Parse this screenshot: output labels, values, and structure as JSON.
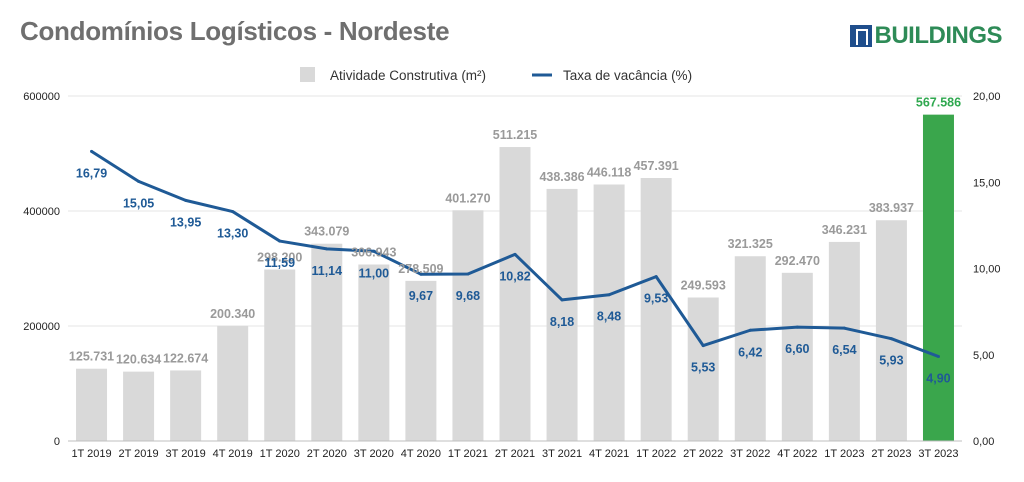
{
  "title": "Condomínios Logísticos - Nordeste",
  "logo": {
    "text": "BUILDINGS",
    "icon": "buildings-logo-icon"
  },
  "colors": {
    "bar": "#d9d9d9",
    "highlight_bar": "#3aa64c",
    "line": "#1f5a96",
    "grid": "#e6e6e6"
  },
  "chart_data": {
    "type": "bar",
    "categories": [
      "1T 2019",
      "2T 2019",
      "3T 2019",
      "4T 2019",
      "1T 2020",
      "2T 2020",
      "3T 2020",
      "4T 2020",
      "1T 2021",
      "2T 2021",
      "3T 2021",
      "4T 2021",
      "1T 2022",
      "2T 2022",
      "3T 2022",
      "4T 2022",
      "1T 2023",
      "2T 2023",
      "3T 2023"
    ],
    "legend_placement": "top-center",
    "grid": true,
    "y_left": {
      "ticks": [
        "0",
        "200000",
        "400000",
        "600000"
      ],
      "range": [
        0,
        600000
      ]
    },
    "y_right": {
      "ticks": [
        "0,00",
        "5,00",
        "10,00",
        "15,00",
        "20,00"
      ],
      "range": [
        0,
        20
      ]
    },
    "series": [
      {
        "name": "Atividade Construtiva (m²)",
        "type": "bar",
        "axis": "left",
        "values": [
          125731,
          120634,
          122674,
          200340,
          298200,
          343079,
          306943,
          278509,
          401270,
          511215,
          438386,
          446118,
          457391,
          249593,
          321325,
          292470,
          346231,
          383937,
          567586
        ],
        "labels": [
          "125.731",
          "120.634",
          "122.674",
          "200.340",
          "298.200",
          "343.079",
          "306.943",
          "278.509",
          "401.270",
          "511.215",
          "438.386",
          "446.118",
          "457.391",
          "249.593",
          "321.325",
          "292.470",
          "346.231",
          "383.937",
          "567.586"
        ],
        "highlight_index": 18
      },
      {
        "name": "Taxa de vacância (%)",
        "type": "line",
        "axis": "right",
        "values": [
          16.79,
          15.05,
          13.95,
          13.3,
          11.59,
          11.14,
          11.0,
          9.67,
          9.68,
          10.82,
          8.18,
          8.48,
          9.53,
          5.53,
          6.42,
          6.6,
          6.54,
          5.93,
          4.9
        ],
        "labels": [
          "16,79",
          "15,05",
          "13,95",
          "13,30",
          "11,59",
          "11,14",
          "11,00",
          "9,67",
          "9,68",
          "10,82",
          "8,18",
          "8,48",
          "9,53",
          "5,53",
          "6,42",
          "6,60",
          "6,54",
          "5,93",
          "4,90"
        ]
      }
    ]
  }
}
